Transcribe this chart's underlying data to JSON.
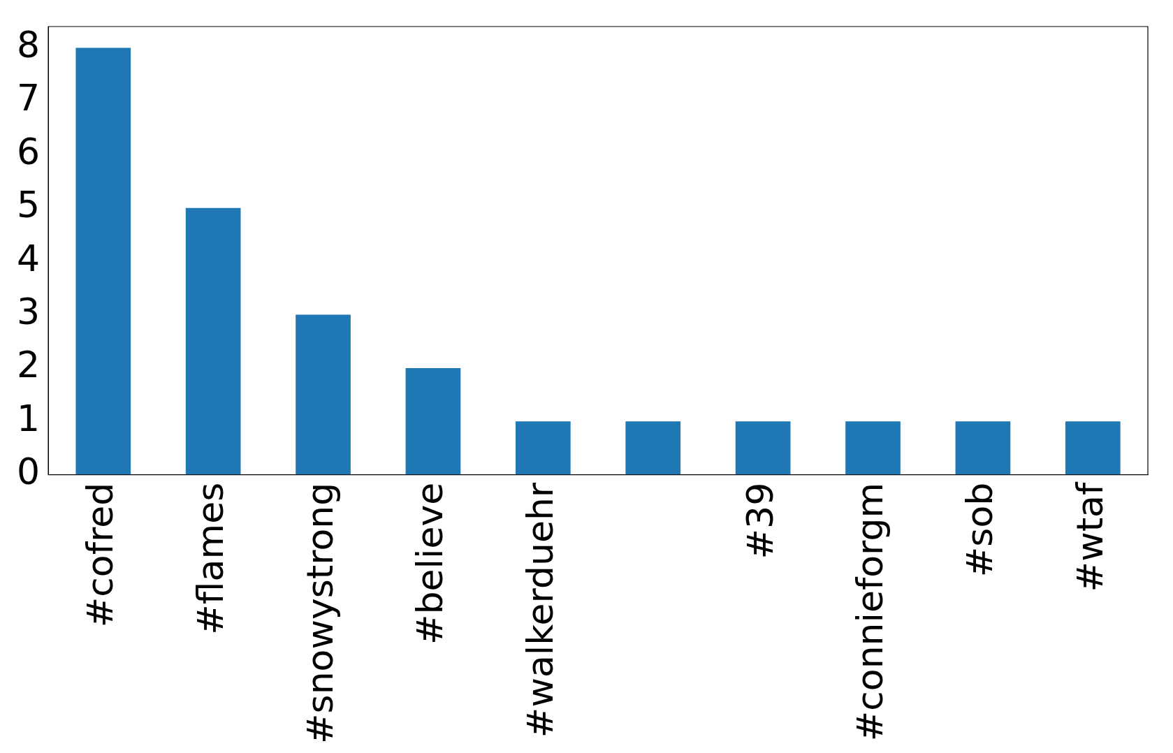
{
  "chart_data": {
    "type": "bar",
    "categories": [
      "#cofred",
      "#flames",
      "#snowystrong",
      "#believe",
      "#walkerduehr",
      null,
      "#39",
      "#connieforgm",
      "#sob",
      "#wtaf"
    ],
    "values": [
      8,
      5,
      3,
      2,
      1,
      1,
      1,
      1,
      1,
      1
    ],
    "color": "#1f77b4",
    "ylim": [
      0,
      8.4
    ],
    "yticks": [
      0,
      1,
      2,
      3,
      4,
      5,
      6,
      7,
      8
    ],
    "grid": false,
    "legend": false
  }
}
